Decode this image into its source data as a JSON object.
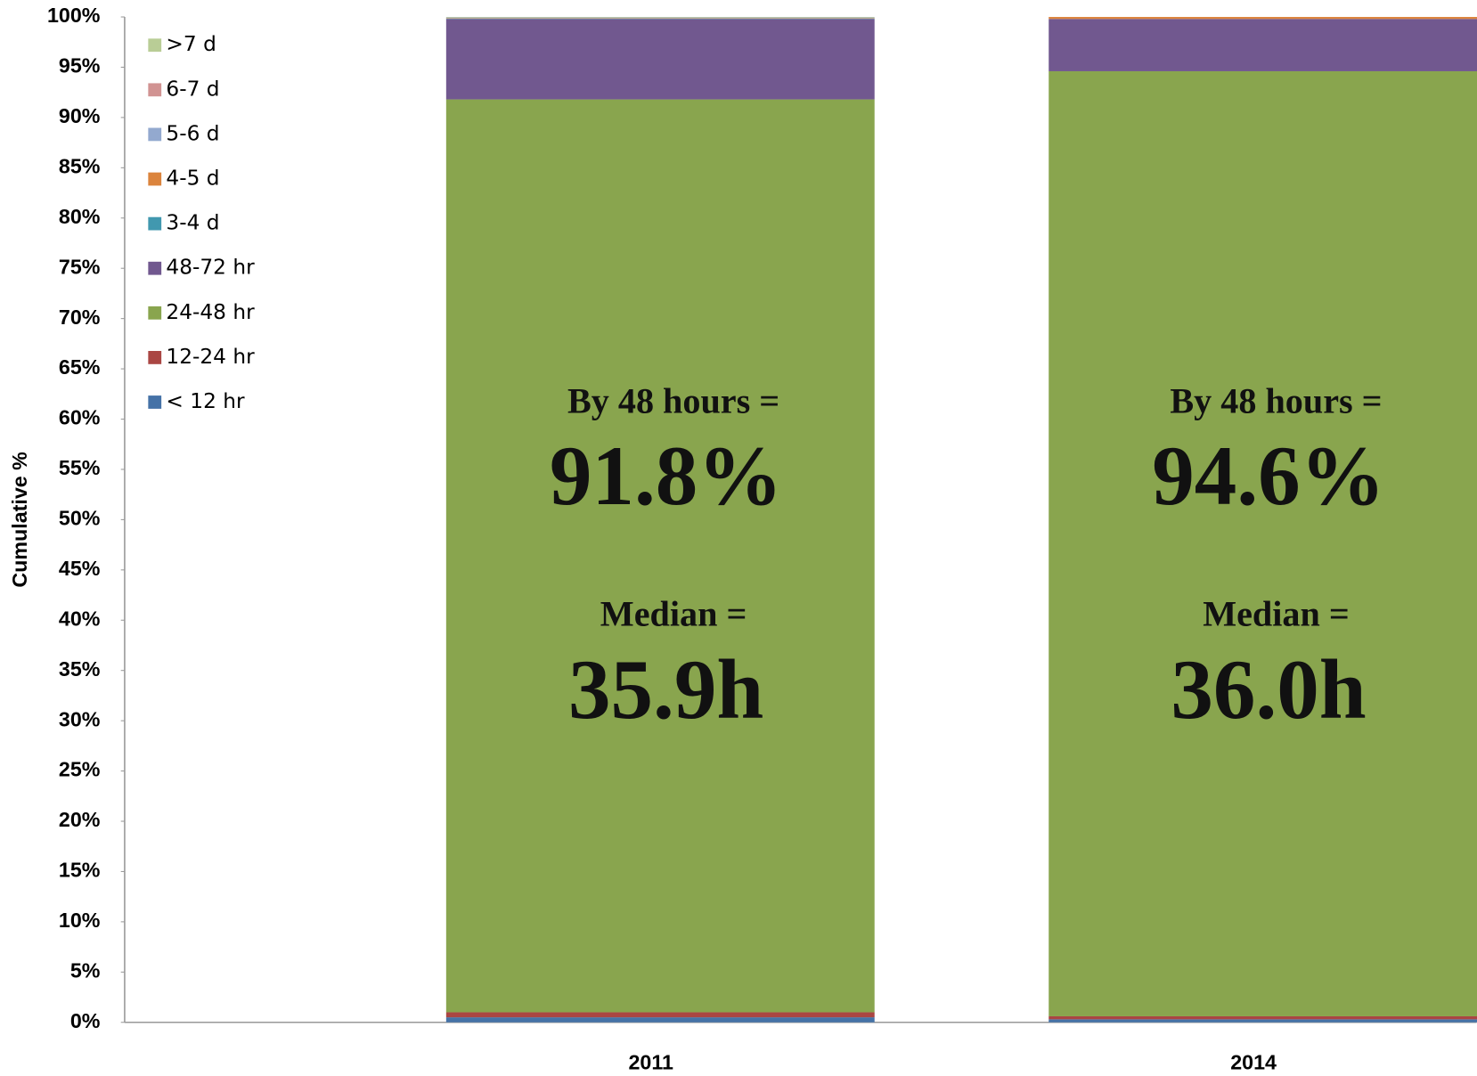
{
  "chart_data": {
    "type": "stacked_bar",
    "ylabel": "Cumulative %",
    "categories": [
      "2011",
      "2014"
    ],
    "series": [
      {
        "name": "< 12 hr",
        "color": "#4572a7",
        "values": [
          0.5,
          0.3
        ]
      },
      {
        "name": "12-24 hr",
        "color": "#aa4643",
        "values": [
          0.5,
          0.3
        ]
      },
      {
        "name": "24-48 hr",
        "color": "#89a54e",
        "values": [
          90.8,
          94.0
        ]
      },
      {
        "name": "48-72 hr",
        "color": "#71588f",
        "values": [
          8.0,
          5.2
        ]
      },
      {
        "name": "3-4 d",
        "color": "#4198af",
        "values": [
          0.05,
          0
        ]
      },
      {
        "name": "4-5 d",
        "color": "#db843d",
        "values": [
          0.05,
          0.2
        ]
      },
      {
        "name": "5-6 d",
        "color": "#93a9cf",
        "values": [
          0.05,
          0
        ]
      },
      {
        "name": "6-7 d",
        "color": "#d19392",
        "values": [
          0,
          0
        ]
      },
      {
        "name": ">7 d",
        "color": "#b9cd96",
        "values": [
          0.05,
          0
        ]
      }
    ],
    "annotations": [
      [
        "By 48 hours =",
        "91.8%",
        "Median =",
        "35.9h"
      ],
      [
        "By 48 hours =",
        "94.6%",
        "Median =",
        "36.0h"
      ]
    ],
    "ylim": [
      0,
      100
    ],
    "yticks": [
      {
        "value": 0,
        "label": "0%"
      },
      {
        "value": 5,
        "label": "5%"
      },
      {
        "value": 10,
        "label": "10%"
      },
      {
        "value": 15,
        "label": "15%"
      },
      {
        "value": 20,
        "label": "20%"
      },
      {
        "value": 25,
        "label": "25%"
      },
      {
        "value": 30,
        "label": "30%"
      },
      {
        "value": 35,
        "label": "35%"
      },
      {
        "value": 40,
        "label": "40%"
      },
      {
        "value": 45,
        "label": "45%"
      },
      {
        "value": 50,
        "label": "50%"
      },
      {
        "value": 55,
        "label": "55%"
      },
      {
        "value": 60,
        "label": "60%"
      },
      {
        "value": 65,
        "label": "65%"
      },
      {
        "value": 70,
        "label": "70%"
      },
      {
        "value": 75,
        "label": "75%"
      },
      {
        "value": 80,
        "label": "80%"
      },
      {
        "value": 85,
        "label": "85%"
      },
      {
        "value": 90,
        "label": "90%"
      },
      {
        "value": 95,
        "label": "95%"
      },
      {
        "value": 100,
        "label": "100%"
      }
    ],
    "legend": "top-left"
  }
}
